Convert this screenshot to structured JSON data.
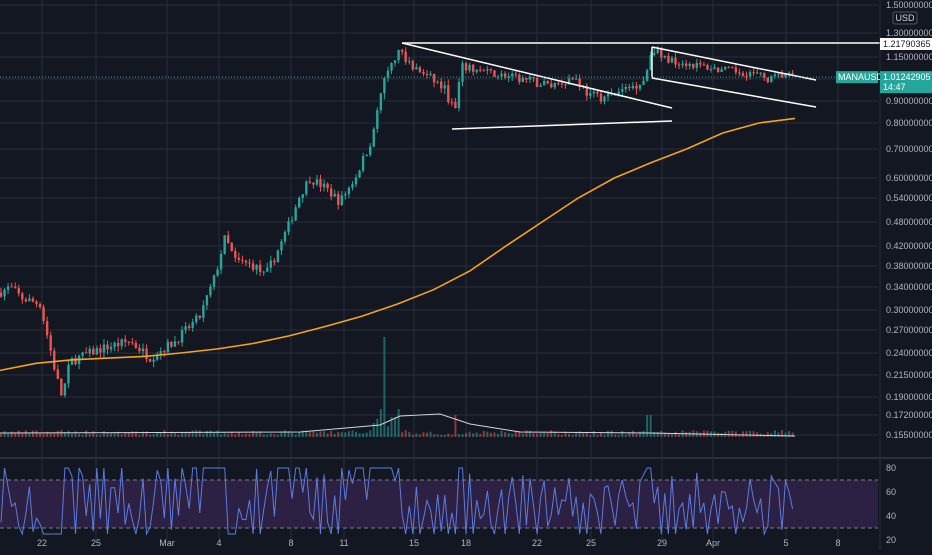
{
  "chart_data": {
    "type": "candlestick",
    "symbol": "MANAUSD",
    "currency": "USD",
    "last_price_label": "1.01242905",
    "countdown_label": "14:47",
    "line_price_label": "1.21790365",
    "price_ticks": [
      "1.50000000",
      "1.30000000",
      "1.15000000",
      "1.00000000",
      "0.90000000",
      "0.80000000",
      "0.70000000",
      "0.60000000",
      "0.54000000",
      "0.48000000",
      "0.42000000",
      "0.38000000",
      "0.34000000",
      "0.30000000",
      "0.27000000",
      "0.24000000",
      "0.21500000",
      "0.19000000",
      "0.17200000",
      "0.15500000"
    ],
    "price_tick_values": [
      1.5,
      1.3,
      1.15,
      1.0,
      0.9,
      0.8,
      0.7,
      0.6,
      0.54,
      0.48,
      0.42,
      0.38,
      0.34,
      0.3,
      0.27,
      0.24,
      0.215,
      0.19,
      0.172,
      0.155
    ],
    "x_ticks": [
      "22",
      "25",
      "Mar",
      "4",
      "8",
      "11",
      "15",
      "18",
      "22",
      "25",
      "29",
      "Apr",
      "5",
      "8"
    ],
    "rsi_ticks": [
      "80",
      "60",
      "40",
      "20"
    ],
    "rsi_levels": [
      70,
      30
    ],
    "price_scale": "log",
    "colors": {
      "background": "#131722",
      "grid": "#2a2e39",
      "up": "#26a69a",
      "down": "#ef5350",
      "ma": "#f7a21b",
      "rsi_line": "#7e57c2",
      "rsi_band": "#2c2143",
      "trendline": "#ffffff",
      "last_price_tag": "#26a69a"
    },
    "ma_series": [
      0.22,
      0.228,
      0.232,
      0.234,
      0.236,
      0.24,
      0.245,
      0.252,
      0.262,
      0.275,
      0.29,
      0.31,
      0.335,
      0.37,
      0.42,
      0.48,
      0.54,
      0.6,
      0.65,
      0.7,
      0.76,
      0.8,
      0.82
    ],
    "key_prices": {
      "low": 0.19,
      "peak": 1.22,
      "support": 0.77,
      "current": 1.012
    }
  }
}
